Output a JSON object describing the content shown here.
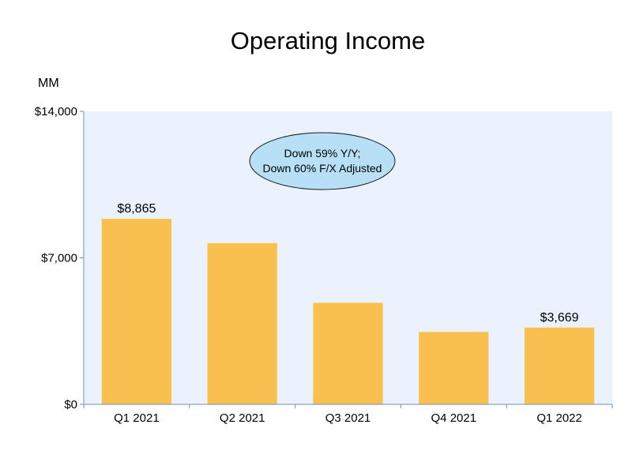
{
  "chart_data": {
    "type": "bar",
    "title": "Operating Income",
    "unit_label": "MM",
    "categories": [
      "Q1 2021",
      "Q2 2021",
      "Q3 2021",
      "Q4 2021",
      "Q1 2022"
    ],
    "values": [
      8865,
      7702,
      4852,
      3460,
      3669
    ],
    "data_labels": [
      "$8,865",
      "",
      "",
      "",
      "$3,669"
    ],
    "ylim": [
      0,
      14000
    ],
    "yticks": [
      0,
      7000,
      14000
    ],
    "ytick_labels": [
      "$0",
      "$7,000",
      "$14,000"
    ],
    "grid": false,
    "annotation": {
      "line1": "Down 59% Y/Y;",
      "line2": "Down 60% F/X Adjusted"
    },
    "colors": {
      "bar": "#F9C04F",
      "plot_background": "#EAF3FD",
      "axis": "#6E8FBE",
      "callout_fill": "#B7E0F7",
      "callout_stroke": "#1A1A1A"
    }
  }
}
